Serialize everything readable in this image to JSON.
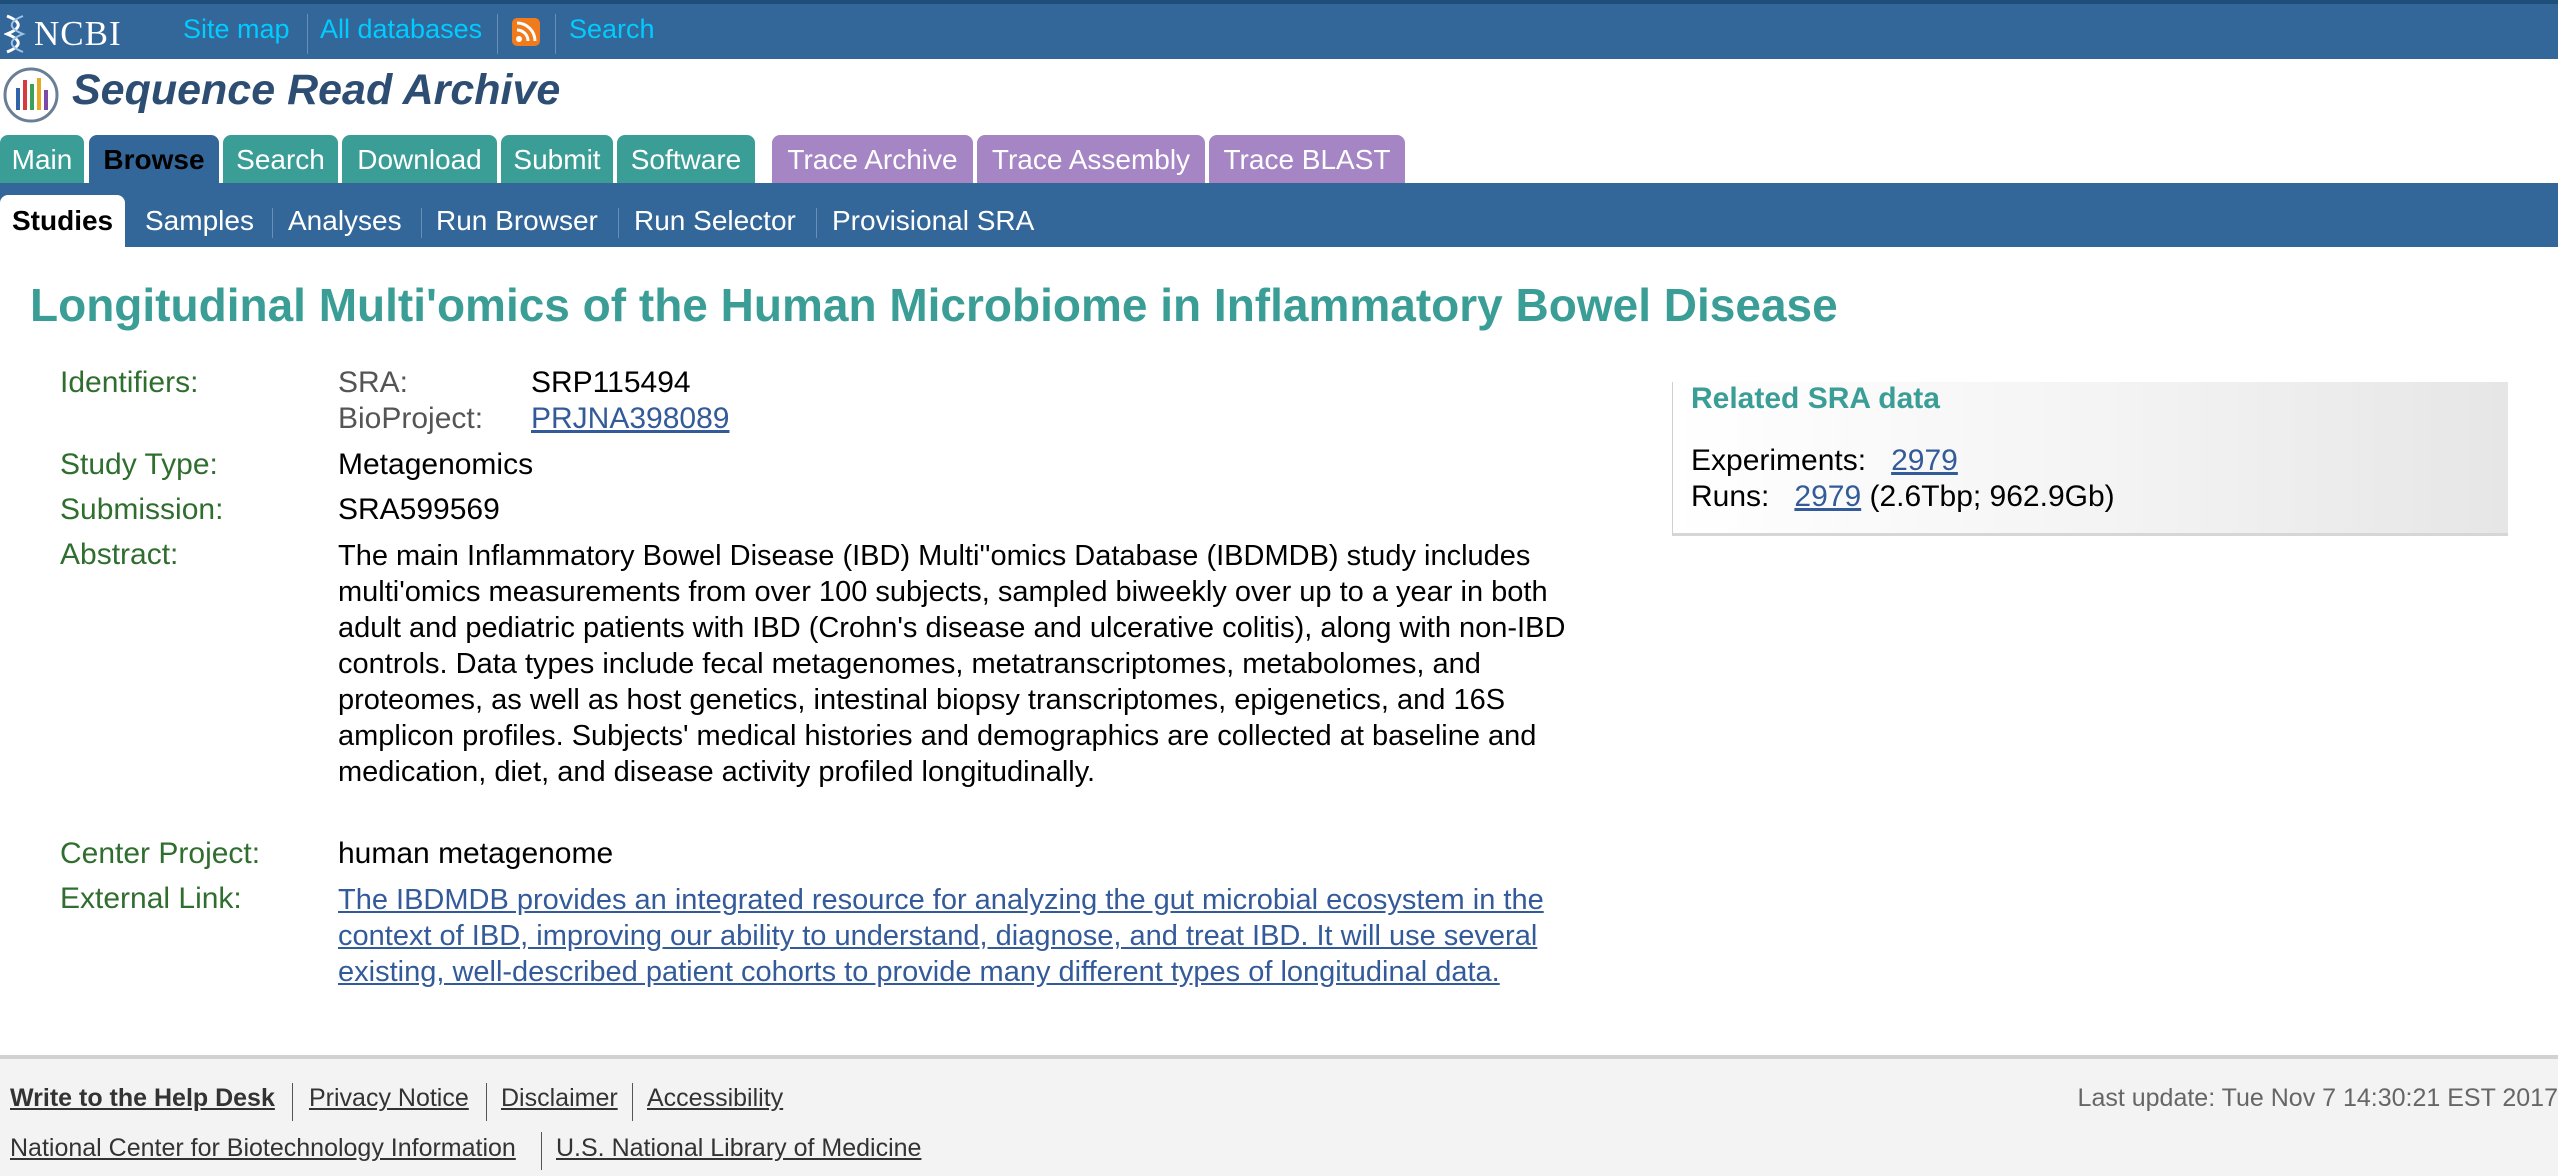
{
  "topbar": {
    "logo_text": "NCBI",
    "links": [
      "Site map",
      "All databases",
      "Search"
    ]
  },
  "header": {
    "title": "Sequence Read Archive"
  },
  "tabs": [
    "Main",
    "Browse",
    "Search",
    "Download",
    "Submit",
    "Software",
    "Trace Archive",
    "Trace Assembly",
    "Trace BLAST"
  ],
  "subtabs": [
    "Studies",
    "Samples",
    "Analyses",
    "Run Browser",
    "Run Selector",
    "Provisional SRA"
  ],
  "study": {
    "title": "Longitudinal Multi'omics of the Human Microbiome in Inflammatory Bowel Disease",
    "identifiers_label": "Identifiers:",
    "sra_label": "SRA:",
    "sra_value": "SRP115494",
    "bioproject_label": "BioProject:",
    "bioproject_value": "PRJNA398089",
    "study_type_label": "Study Type:",
    "study_type_value": "Metagenomics",
    "submission_label": "Submission:",
    "submission_value": "SRA599569",
    "abstract_label": "Abstract:",
    "abstract_value": "The main Inflammatory Bowel Disease (IBD) Multi''omics Database (IBDMDB) study includes multi'omics measurements from over 100 subjects, sampled biweekly over up to a year in both adult and pediatric patients with IBD (Crohn's disease and ulcerative colitis), along with non-IBD controls. Data types include fecal metagenomes, metatranscriptomes, metabolomes, and proteomes, as well as host genetics, intestinal biopsy transcriptomes, epigenetics, and 16S amplicon profiles. Subjects' medical histories and demographics are collected at baseline and medication, diet, and disease activity profiled longitudinally.",
    "center_project_label": "Center Project:",
    "center_project_value": "human metagenome",
    "external_link_label": "External Link:",
    "external_link_value": "The IBDMDB provides an integrated resource for analyzing the gut microbial ecosystem in the context of IBD, improving our ability to understand, diagnose, and treat IBD. It will use several existing, well-described patient cohorts to provide many different types of longitudinal data."
  },
  "related": {
    "title": "Related SRA data",
    "experiments_label": "Experiments:",
    "experiments_value": "2979",
    "runs_label": "Runs:",
    "runs_value": "2979",
    "runs_extra": "(2.6Tbp; 962.9Gb)"
  },
  "footer": {
    "links_row1": [
      "Write to the Help Desk",
      "Privacy Notice",
      "Disclaimer",
      "Accessibility"
    ],
    "links_row2": [
      "National Center for Biotechnology Information",
      "U.S. National Library of Medicine"
    ],
    "last_update": "Last update: Tue Nov 7 14:30:21 EST 2017"
  },
  "colors": {
    "topbar": "#336699",
    "tab_teal": "#3a9e97",
    "tab_purple": "#a585c4",
    "title_teal": "#3a9e97",
    "label_green": "#2f6e2f",
    "link_blue": "#335a99"
  }
}
